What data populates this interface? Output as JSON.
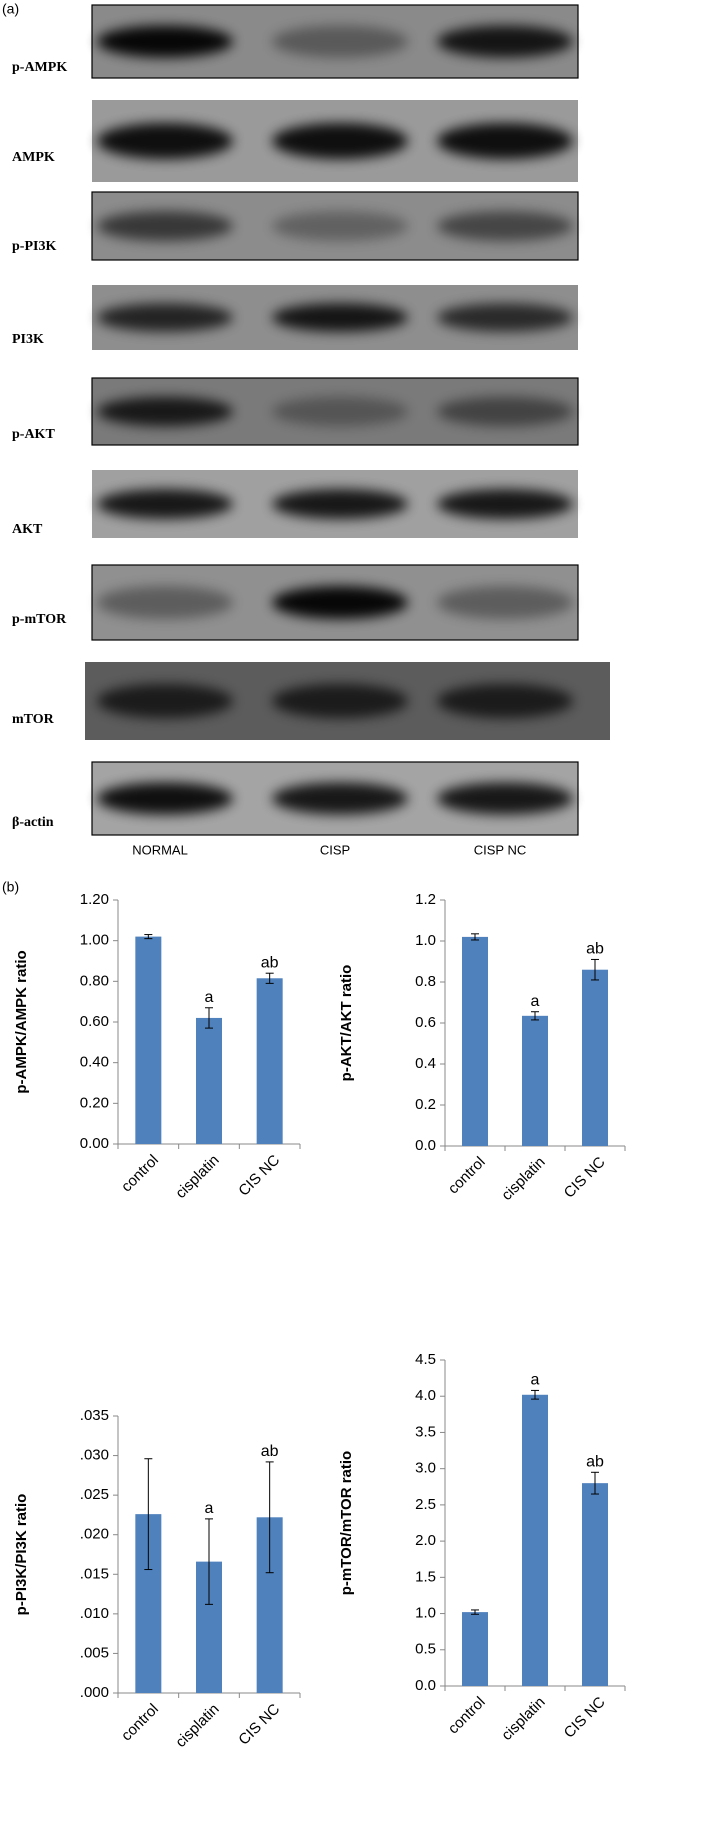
{
  "blots": {
    "panel_label": "(a)",
    "rows": [
      "p-AMPK",
      "AMPK",
      "p-PI3K",
      "PI3K",
      "p-AKT",
      "AKT",
      "p-mTOR",
      "mTOR",
      "β-actin"
    ],
    "lanes": [
      "NORMAL",
      "CISP",
      "CISP NC"
    ]
  },
  "panel_b_label": "(b)",
  "chart_data": [
    {
      "type": "bar",
      "y_label": "p-AMPK/AMPK ratio",
      "categories": [
        "control",
        "cisplatin",
        "CIS NC"
      ],
      "values": [
        1.02,
        0.62,
        0.815
      ],
      "errors": [
        0.01,
        0.05,
        0.025
      ],
      "bar_labels": [
        null,
        "a",
        "ab"
      ],
      "color": "#4f81bd",
      "ylim": [
        0,
        1.2
      ],
      "yticks": [
        {
          "value": 0,
          "label": "0.00"
        },
        {
          "value": 0.2,
          "label": "0.20"
        },
        {
          "value": 0.4,
          "label": "0.40"
        },
        {
          "value": 0.6,
          "label": "0.60"
        },
        {
          "value": 0.8,
          "label": "0.80"
        },
        {
          "value": 1,
          "label": "1.00"
        },
        {
          "value": 1.2,
          "label": "1.20"
        }
      ]
    },
    {
      "type": "bar",
      "y_label": "p-AKT/AKT ratio",
      "categories": [
        "control",
        "cisplatin",
        "CIS NC"
      ],
      "values": [
        1.02,
        0.635,
        0.86
      ],
      "errors": [
        0.015,
        0.02,
        0.05
      ],
      "bar_labels": [
        null,
        "a",
        "ab"
      ],
      "color": "#4f81bd",
      "ylim": [
        0,
        1.2
      ],
      "yticks": [
        {
          "value": 0,
          "label": "0.0"
        },
        0.2,
        0.4,
        0.6,
        0.8,
        {
          "value": 1,
          "label": "1.0"
        },
        1.2
      ]
    },
    {
      "type": "bar",
      "y_label": "p-PI3K/PI3K ratio",
      "categories": [
        "control",
        "cisplatin",
        "CIS NC"
      ],
      "values": [
        0.0226,
        0.0166,
        0.0222
      ],
      "errors": [
        0.007,
        0.0054,
        0.007
      ],
      "bar_labels": [
        null,
        "a",
        "ab"
      ],
      "color": "#4f81bd",
      "ylim": [
        0,
        0.035
      ],
      "yticks": [
        {
          "value": 0,
          "label": ".000"
        },
        {
          "value": 0.005,
          "label": ".005"
        },
        {
          "value": 0.01,
          "label": ".010"
        },
        {
          "value": 0.015,
          "label": ".015"
        },
        {
          "value": 0.02,
          "label": ".020"
        },
        {
          "value": 0.025,
          "label": ".025"
        },
        {
          "value": 0.03,
          "label": ".030"
        },
        {
          "value": 0.035,
          "label": ".035"
        }
      ]
    },
    {
      "type": "bar",
      "y_label": "p-mTOR/mTOR ratio",
      "categories": [
        "control",
        "cisplatin",
        "CIS NC"
      ],
      "values": [
        1.02,
        4.02,
        2.8
      ],
      "errors": [
        0.03,
        0.06,
        0.15
      ],
      "bar_labels": [
        null,
        "a",
        "ab"
      ],
      "color": "#4f81bd",
      "ylim": [
        0,
        4.5
      ],
      "yticks": [
        {
          "value": 0,
          "label": "0.0"
        },
        0.5,
        {
          "value": 1,
          "label": "1.0"
        },
        1.5,
        {
          "value": 2,
          "label": "2.0"
        },
        2.5,
        {
          "value": 3,
          "label": "3.0"
        },
        3.5,
        {
          "value": 4,
          "label": "4.0"
        },
        4.5
      ]
    }
  ]
}
